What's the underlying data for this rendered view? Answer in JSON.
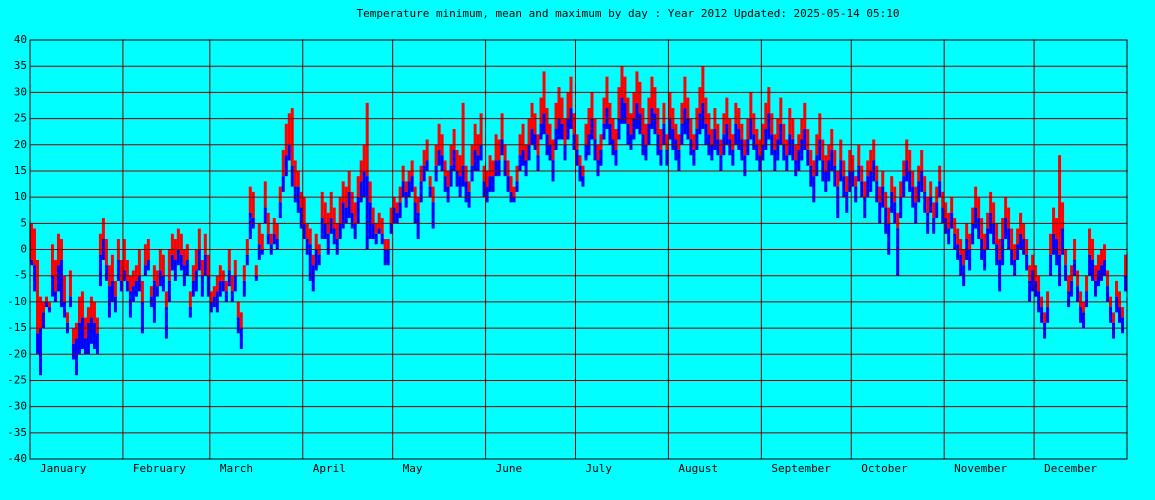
{
  "chart_data": {
    "type": "minmeanmax",
    "title": "Temperature minimum, mean and maximum by day : Year 2012   Updated: 2025-05-14 05:10",
    "xlim": [
      0,
      366
    ],
    "xticks": [
      {
        "value": 0,
        "label": "January"
      },
      {
        "value": 31,
        "label": "February"
      },
      {
        "value": 60,
        "label": "March"
      },
      {
        "value": 91,
        "label": "April"
      },
      {
        "value": 121,
        "label": "May"
      },
      {
        "value": 152,
        "label": "June"
      },
      {
        "value": 182,
        "label": "July"
      },
      {
        "value": 213,
        "label": "August"
      },
      {
        "value": 244,
        "label": "September"
      },
      {
        "value": 274,
        "label": "October"
      },
      {
        "value": 305,
        "label": "November"
      },
      {
        "value": 335,
        "label": "December"
      }
    ],
    "ylim": [
      -40,
      40
    ],
    "yticks": [
      -40,
      -35,
      -30,
      -25,
      -20,
      -15,
      -10,
      -5,
      0,
      5,
      10,
      15,
      20,
      25,
      30,
      35,
      40
    ],
    "grid": true,
    "grid_color": "#800000",
    "series": [
      {
        "color": "#0000ff",
        "values": [
          -3,
          -8,
          -20,
          -24,
          -15,
          -11,
          -12,
          -9,
          -10,
          -8,
          -11,
          -13,
          -16,
          -11,
          -21,
          -24,
          -20,
          -19,
          -20,
          -20,
          -18,
          -19,
          -20,
          -7,
          -2,
          -6,
          -13,
          -10,
          -12,
          -6,
          -8,
          -6,
          -8,
          -13,
          -10,
          -9,
          -8,
          -16,
          -5,
          -4,
          -11,
          -14,
          -9,
          -7,
          -8,
          -17,
          -10,
          -4,
          -6,
          -3,
          -4,
          -7,
          -5,
          -13,
          -9,
          -8,
          -4,
          -9,
          -5,
          -9,
          -12,
          -11,
          -12,
          -9,
          -8,
          -10,
          -7,
          -10,
          -8,
          -16,
          -19,
          -9,
          -3,
          2,
          4,
          -6,
          -2,
          -1,
          5,
          1,
          -1,
          1,
          0,
          6,
          11,
          14,
          17,
          12,
          9,
          7,
          4,
          2,
          -1,
          -6,
          -8,
          -4,
          -3,
          2,
          2,
          -1,
          3,
          1,
          -1,
          2,
          4,
          5,
          6,
          4,
          2,
          5,
          9,
          10,
          0,
          2,
          2,
          1,
          3,
          1,
          -3,
          -3,
          3,
          5,
          5,
          6,
          10,
          8,
          10,
          11,
          5,
          2,
          9,
          13,
          15,
          10,
          4,
          13,
          16,
          15,
          11,
          9,
          12,
          15,
          12,
          10,
          12,
          9,
          8,
          13,
          15,
          15,
          17,
          10,
          9,
          11,
          11,
          14,
          14,
          18,
          14,
          11,
          9,
          9,
          11,
          15,
          16,
          14,
          17,
          20,
          19,
          15,
          21,
          22,
          18,
          17,
          13,
          19,
          21,
          21,
          17,
          21,
          23,
          19,
          16,
          13,
          12,
          17,
          18,
          21,
          17,
          14,
          16,
          21,
          23,
          20,
          18,
          16,
          21,
          24,
          24,
          20,
          19,
          21,
          23,
          22,
          18,
          17,
          20,
          23,
          22,
          18,
          16,
          20,
          16,
          21,
          19,
          17,
          15,
          20,
          22,
          21,
          18,
          16,
          19,
          22,
          23,
          20,
          18,
          17,
          19,
          18,
          15,
          18,
          20,
          18,
          16,
          20,
          19,
          17,
          14,
          18,
          21,
          19,
          17,
          15,
          17,
          19,
          21,
          18,
          15,
          17,
          20,
          17,
          15,
          18,
          17,
          14,
          15,
          17,
          19,
          16,
          12,
          9,
          14,
          17,
          13,
          11,
          13,
          15,
          12,
          6,
          13,
          10,
          7,
          11,
          12,
          9,
          13,
          10,
          6,
          10,
          11,
          13,
          9,
          5,
          8,
          3,
          -1,
          7,
          5,
          -5,
          6,
          10,
          13,
          11,
          8,
          5,
          9,
          11,
          7,
          3,
          7,
          3,
          6,
          10,
          5,
          3,
          1,
          4,
          0,
          -2,
          -5,
          -7,
          -2,
          -4,
          1,
          4,
          2,
          -2,
          -4,
          0,
          3,
          1,
          -3,
          -8,
          -3,
          2,
          0,
          -3,
          -5,
          -2,
          0,
          -1,
          -4,
          -10,
          -8,
          -9,
          -12,
          -14,
          -17,
          -14,
          -5,
          -1,
          -3,
          -7,
          -1,
          -6,
          -11,
          -9,
          -5,
          -10,
          -14,
          -15,
          -11,
          -5,
          -6,
          -9,
          -7,
          -6,
          -5,
          -10,
          -14,
          -17,
          -12,
          -14,
          -16,
          -8
        ]
      },
      {
        "color": "#0000ff",
        "values": [
          -2,
          -3,
          -16,
          -15,
          -12,
          -10,
          -11,
          -5,
          -8,
          -3,
          -2,
          -10,
          -14,
          -9,
          -18,
          -17,
          -14,
          -13,
          -17,
          -14,
          -13,
          -14,
          -16,
          -1,
          2,
          -3,
          -7,
          -6,
          -9,
          -2,
          -6,
          -4,
          -6,
          -8,
          -7,
          -6,
          -5,
          -10,
          -3,
          -2,
          -9,
          -6,
          -7,
          -4,
          -5,
          -11,
          -6,
          -1,
          -2,
          0,
          -1,
          -3,
          -2,
          -11,
          -6,
          -4,
          0,
          -5,
          -1,
          -5,
          -10,
          -9,
          -8,
          -6,
          -6,
          -8,
          -4,
          -8,
          -5,
          -13,
          -15,
          -6,
          -1,
          7,
          6,
          -5,
          1,
          0,
          8,
          3,
          1,
          3,
          2,
          9,
          14,
          18,
          20,
          16,
          12,
          12,
          8,
          5,
          2,
          1,
          -3,
          0,
          -1,
          6,
          5,
          3,
          6,
          4,
          2,
          5,
          9,
          8,
          11,
          7,
          5,
          10,
          13,
          15,
          14,
          9,
          5,
          3,
          4,
          3,
          0,
          0,
          5,
          8,
          7,
          9,
          13,
          11,
          13,
          14,
          9,
          7,
          13,
          16,
          17,
          12,
          9,
          16,
          19,
          18,
          14,
          12,
          16,
          19,
          15,
          14,
          16,
          13,
          11,
          16,
          19,
          18,
          20,
          13,
          12,
          14,
          14,
          17,
          17,
          21,
          17,
          14,
          11,
          10,
          13,
          18,
          19,
          17,
          20,
          23,
          22,
          18,
          24,
          26,
          22,
          20,
          17,
          23,
          25,
          24,
          20,
          25,
          27,
          22,
          19,
          16,
          14,
          20,
          22,
          25,
          21,
          17,
          19,
          24,
          27,
          24,
          21,
          19,
          25,
          29,
          28,
          24,
          22,
          25,
          28,
          26,
          22,
          20,
          24,
          27,
          26,
          22,
          19,
          24,
          19,
          25,
          23,
          21,
          19,
          24,
          27,
          25,
          21,
          19,
          23,
          26,
          28,
          24,
          22,
          20,
          23,
          21,
          18,
          22,
          24,
          21,
          19,
          24,
          23,
          21,
          18,
          21,
          25,
          22,
          20,
          18,
          20,
          23,
          26,
          22,
          19,
          21,
          24,
          20,
          18,
          22,
          21,
          17,
          19,
          21,
          23,
          19,
          16,
          14,
          18,
          21,
          17,
          15,
          17,
          19,
          16,
          12,
          17,
          14,
          11,
          15,
          15,
          12,
          16,
          13,
          10,
          14,
          15,
          17,
          13,
          9,
          12,
          8,
          5,
          11,
          9,
          4,
          10,
          14,
          17,
          15,
          12,
          9,
          13,
          15,
          11,
          7,
          10,
          6,
          9,
          13,
          8,
          6,
          4,
          7,
          3,
          1,
          -1,
          -3,
          2,
          0,
          5,
          8,
          6,
          2,
          0,
          4,
          7,
          5,
          1,
          -2,
          2,
          6,
          4,
          0,
          -2,
          1,
          3,
          2,
          -1,
          -6,
          -4,
          -6,
          -8,
          -11,
          -14,
          -11,
          -1,
          3,
          2,
          -1,
          4,
          -3,
          -8,
          -6,
          -2,
          -7,
          -11,
          -12,
          -8,
          -1,
          -2,
          -6,
          -4,
          -3,
          -2,
          -7,
          -11,
          -14,
          -9,
          -11,
          -13,
          -5
        ]
      },
      {
        "color": "#ff0000",
        "values": [
          5,
          4,
          -2,
          -9,
          -10,
          -9,
          -10,
          1,
          -2,
          3,
          2,
          -5,
          -12,
          -4,
          -15,
          -14,
          -9,
          -8,
          -13,
          -11,
          -9,
          -10,
          -13,
          3,
          6,
          2,
          -3,
          -1,
          -6,
          2,
          -2,
          2,
          -2,
          -5,
          -4,
          -3,
          0,
          -6,
          1,
          2,
          -7,
          -3,
          -4,
          0,
          -1,
          -8,
          0,
          3,
          2,
          4,
          3,
          0,
          1,
          -8,
          -3,
          0,
          4,
          -2,
          3,
          -1,
          -8,
          -7,
          -5,
          -3,
          -4,
          -6,
          0,
          -5,
          -2,
          -10,
          -12,
          -3,
          2,
          12,
          11,
          -3,
          5,
          3,
          13,
          7,
          3,
          6,
          5,
          12,
          19,
          24,
          26,
          27,
          17,
          15,
          11,
          10,
          5,
          4,
          -1,
          3,
          1,
          11,
          9,
          7,
          11,
          8,
          5,
          10,
          13,
          12,
          15,
          11,
          9,
          14,
          17,
          20,
          28,
          13,
          8,
          5,
          7,
          6,
          2,
          2,
          8,
          10,
          9,
          12,
          16,
          13,
          15,
          17,
          12,
          10,
          16,
          19,
          21,
          14,
          12,
          20,
          24,
          22,
          17,
          15,
          20,
          23,
          19,
          18,
          28,
          16,
          13,
          20,
          24,
          22,
          26,
          16,
          15,
          18,
          17,
          22,
          21,
          26,
          20,
          17,
          14,
          12,
          16,
          22,
          24,
          20,
          25,
          28,
          26,
          22,
          29,
          34,
          27,
          24,
          21,
          28,
          31,
          29,
          25,
          30,
          33,
          26,
          22,
          18,
          16,
          24,
          27,
          30,
          25,
          20,
          22,
          29,
          33,
          28,
          25,
          23,
          31,
          35,
          33,
          29,
          26,
          30,
          34,
          32,
          27,
          24,
          29,
          33,
          31,
          27,
          23,
          28,
          22,
          30,
          27,
          24,
          22,
          28,
          33,
          29,
          25,
          22,
          27,
          31,
          35,
          29,
          26,
          23,
          27,
          24,
          21,
          26,
          29,
          25,
          22,
          28,
          27,
          24,
          21,
          25,
          30,
          26,
          23,
          21,
          24,
          28,
          31,
          26,
          22,
          25,
          29,
          24,
          21,
          27,
          25,
          20,
          22,
          25,
          28,
          23,
          19,
          17,
          22,
          26,
          21,
          18,
          20,
          23,
          19,
          15,
          21,
          17,
          14,
          19,
          18,
          14,
          20,
          16,
          13,
          17,
          19,
          21,
          16,
          12,
          15,
          11,
          8,
          14,
          12,
          7,
          13,
          17,
          21,
          19,
          15,
          12,
          16,
          19,
          14,
          10,
          13,
          9,
          12,
          16,
          11,
          9,
          7,
          10,
          6,
          4,
          2,
          0,
          5,
          3,
          8,
          12,
          10,
          6,
          3,
          7,
          11,
          9,
          5,
          2,
          6,
          10,
          8,
          4,
          1,
          4,
          7,
          5,
          2,
          -3,
          -1,
          -3,
          -5,
          -9,
          -12,
          -8,
          3,
          8,
          6,
          18,
          9,
          0,
          -5,
          -3,
          2,
          -4,
          -8,
          -10,
          -5,
          4,
          2,
          -3,
          -1,
          0,
          1,
          -4,
          -9,
          -12,
          -6,
          -8,
          -11,
          -1
        ]
      }
    ]
  }
}
